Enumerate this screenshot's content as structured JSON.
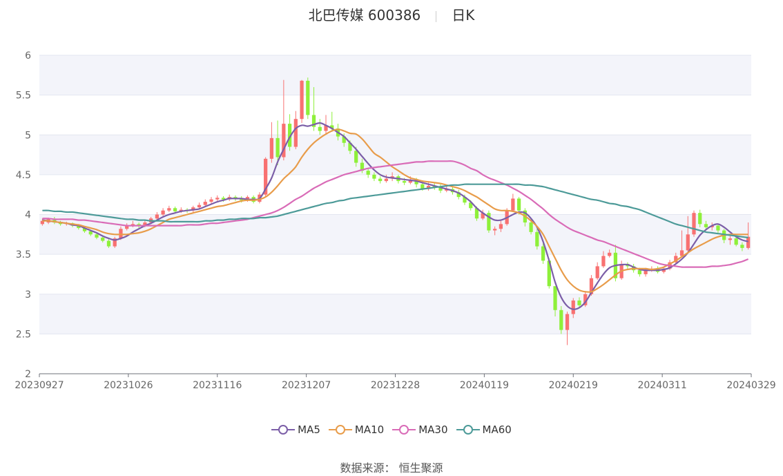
{
  "chart_data": {
    "type": "candlestick",
    "title": "北巴传媒 600386",
    "period": "日K",
    "ylim": [
      2,
      6
    ],
    "yticks": [
      "2",
      "2.5",
      "3",
      "3.5",
      "4",
      "4.5",
      "5",
      "5.5",
      "6"
    ],
    "xticks": [
      "20230927",
      "20231026",
      "20231116",
      "20231207",
      "20231228",
      "20240119",
      "20240219",
      "20240311",
      "20240329"
    ],
    "grid": true,
    "legend_position": "bottom",
    "colors": {
      "up": "#f87171",
      "down": "#8ef03a",
      "MA5": "#7b5ea7",
      "MA10": "#e89c4a",
      "MA30": "#d96bb7",
      "MA60": "#4c9a98"
    },
    "candles": [
      [
        3.88,
        3.92,
        3.95,
        3.86
      ],
      [
        3.9,
        3.94,
        3.96,
        3.88
      ],
      [
        3.93,
        3.9,
        3.97,
        3.88
      ],
      [
        3.9,
        3.88,
        3.92,
        3.86
      ],
      [
        3.88,
        3.89,
        3.91,
        3.86
      ],
      [
        3.89,
        3.86,
        3.9,
        3.84
      ],
      [
        3.86,
        3.83,
        3.88,
        3.81
      ],
      [
        3.83,
        3.79,
        3.85,
        3.77
      ],
      [
        3.79,
        3.75,
        3.81,
        3.73
      ],
      [
        3.75,
        3.71,
        3.77,
        3.69
      ],
      [
        3.71,
        3.67,
        3.73,
        3.65
      ],
      [
        3.67,
        3.6,
        3.69,
        3.58
      ],
      [
        3.6,
        3.7,
        3.72,
        3.58
      ],
      [
        3.7,
        3.82,
        3.85,
        3.68
      ],
      [
        3.82,
        3.86,
        3.89,
        3.8
      ],
      [
        3.86,
        3.88,
        3.92,
        3.84
      ],
      [
        3.88,
        3.86,
        3.9,
        3.83
      ],
      [
        3.86,
        3.9,
        3.93,
        3.84
      ],
      [
        3.9,
        3.95,
        3.97,
        3.88
      ],
      [
        3.95,
        4.0,
        4.03,
        3.93
      ],
      [
        4.0,
        4.05,
        4.08,
        3.98
      ],
      [
        4.05,
        4.08,
        4.11,
        4.03
      ],
      [
        4.08,
        4.04,
        4.1,
        4.01
      ],
      [
        4.04,
        4.06,
        4.09,
        4.02
      ],
      [
        4.06,
        4.05,
        4.08,
        4.02
      ],
      [
        4.05,
        4.09,
        4.11,
        4.03
      ],
      [
        4.09,
        4.12,
        4.15,
        4.07
      ],
      [
        4.12,
        4.16,
        4.19,
        4.1
      ],
      [
        4.16,
        4.19,
        4.22,
        4.14
      ],
      [
        4.19,
        4.21,
        4.24,
        4.17
      ],
      [
        4.21,
        4.19,
        4.23,
        4.16
      ],
      [
        4.19,
        4.22,
        4.25,
        4.17
      ],
      [
        4.22,
        4.2,
        4.24,
        4.17
      ],
      [
        4.2,
        4.18,
        4.23,
        4.15
      ],
      [
        4.18,
        4.22,
        4.24,
        4.16
      ],
      [
        4.22,
        4.16,
        4.24,
        4.14
      ],
      [
        4.16,
        4.25,
        4.28,
        4.14
      ],
      [
        4.25,
        4.7,
        4.72,
        4.23
      ],
      [
        4.7,
        4.96,
        5.16,
        4.65
      ],
      [
        4.96,
        4.72,
        5.18,
        4.62
      ],
      [
        4.72,
        5.14,
        5.69,
        4.68
      ],
      [
        5.14,
        4.85,
        5.26,
        4.8
      ],
      [
        4.85,
        5.2,
        5.3,
        4.82
      ],
      [
        5.2,
        5.68,
        5.69,
        5.15
      ],
      [
        5.68,
        5.25,
        5.72,
        5.2
      ],
      [
        5.25,
        5.1,
        5.6,
        5.05
      ],
      [
        5.1,
        5.05,
        5.2,
        5.0
      ],
      [
        5.05,
        5.12,
        5.25,
        5.02
      ],
      [
        5.12,
        5.08,
        5.29,
        5.04
      ],
      [
        5.08,
        4.98,
        5.14,
        4.93
      ],
      [
        4.98,
        4.9,
        5.02,
        4.85
      ],
      [
        4.9,
        4.8,
        4.93,
        4.76
      ],
      [
        4.8,
        4.65,
        4.85,
        4.6
      ],
      [
        4.65,
        4.55,
        4.7,
        4.52
      ],
      [
        4.55,
        4.5,
        4.58,
        4.46
      ],
      [
        4.5,
        4.45,
        4.53,
        4.42
      ],
      [
        4.45,
        4.42,
        4.48,
        4.39
      ],
      [
        4.42,
        4.45,
        4.5,
        4.4
      ],
      [
        4.45,
        4.48,
        4.53,
        4.42
      ],
      [
        4.48,
        4.42,
        4.5,
        4.39
      ],
      [
        4.42,
        4.4,
        4.46,
        4.37
      ],
      [
        4.4,
        4.44,
        4.48,
        4.38
      ],
      [
        4.44,
        4.38,
        4.46,
        4.34
      ],
      [
        4.38,
        4.32,
        4.42,
        4.3
      ],
      [
        4.32,
        4.36,
        4.4,
        4.3
      ],
      [
        4.36,
        4.34,
        4.39,
        4.31
      ],
      [
        4.34,
        4.3,
        4.38,
        4.27
      ],
      [
        4.3,
        4.32,
        4.36,
        4.28
      ],
      [
        4.32,
        4.28,
        4.35,
        4.25
      ],
      [
        4.28,
        4.22,
        4.31,
        4.19
      ],
      [
        4.22,
        4.15,
        4.25,
        4.12
      ],
      [
        4.15,
        4.08,
        4.18,
        4.05
      ],
      [
        4.08,
        3.95,
        4.1,
        3.92
      ],
      [
        3.95,
        4.02,
        4.06,
        3.93
      ],
      [
        4.02,
        3.8,
        4.05,
        3.77
      ],
      [
        3.8,
        3.82,
        3.85,
        3.74
      ],
      [
        3.82,
        3.88,
        3.92,
        3.78
      ],
      [
        3.88,
        4.05,
        4.08,
        3.86
      ],
      [
        4.05,
        4.2,
        4.26,
        4.03
      ],
      [
        4.2,
        4.05,
        4.22,
        4.0
      ],
      [
        4.05,
        3.9,
        4.08,
        3.85
      ],
      [
        3.9,
        3.78,
        3.94,
        3.75
      ],
      [
        3.78,
        3.6,
        3.82,
        3.56
      ],
      [
        3.6,
        3.42,
        3.64,
        3.38
      ],
      [
        3.42,
        3.1,
        3.45,
        3.07
      ],
      [
        3.1,
        2.8,
        3.04,
        2.72
      ],
      [
        2.8,
        2.55,
        2.85,
        2.5
      ],
      [
        2.55,
        2.75,
        2.78,
        2.36
      ],
      [
        2.75,
        2.92,
        2.95,
        2.7
      ],
      [
        2.92,
        2.86,
        2.96,
        2.82
      ],
      [
        2.86,
        3.0,
        3.04,
        2.84
      ],
      [
        3.0,
        3.2,
        3.24,
        2.98
      ],
      [
        3.2,
        3.35,
        3.4,
        3.18
      ],
      [
        3.35,
        3.48,
        3.54,
        3.33
      ],
      [
        3.48,
        3.52,
        3.56,
        3.46
      ],
      [
        3.52,
        3.2,
        3.62,
        3.16
      ],
      [
        3.2,
        3.38,
        3.42,
        3.18
      ],
      [
        3.38,
        3.35,
        3.4,
        3.32
      ],
      [
        3.35,
        3.3,
        3.38,
        3.27
      ],
      [
        3.3,
        3.25,
        3.33,
        3.22
      ],
      [
        3.25,
        3.3,
        3.33,
        3.22
      ],
      [
        3.3,
        3.32,
        3.35,
        3.28
      ],
      [
        3.32,
        3.28,
        3.35,
        3.26
      ],
      [
        3.28,
        3.32,
        3.34,
        3.26
      ],
      [
        3.32,
        3.4,
        3.43,
        3.3
      ],
      [
        3.4,
        3.48,
        3.52,
        3.38
      ],
      [
        3.48,
        3.55,
        3.8,
        3.46
      ],
      [
        3.55,
        3.75,
        3.98,
        3.53
      ],
      [
        3.75,
        4.02,
        4.05,
        3.72
      ],
      [
        4.02,
        3.88,
        4.06,
        3.84
      ],
      [
        3.88,
        3.84,
        3.92,
        3.8
      ],
      [
        3.84,
        3.86,
        3.9,
        3.8
      ],
      [
        3.86,
        3.8,
        3.88,
        3.76
      ],
      [
        3.8,
        3.68,
        3.82,
        3.64
      ],
      [
        3.68,
        3.7,
        3.73,
        3.62
      ],
      [
        3.7,
        3.62,
        3.72,
        3.6
      ],
      [
        3.62,
        3.58,
        3.65,
        3.54
      ],
      [
        3.58,
        3.72,
        3.9,
        3.56
      ]
    ],
    "series": [
      {
        "name": "MA5",
        "values": [
          3.93,
          3.92,
          3.91,
          3.9,
          3.89,
          3.87,
          3.86,
          3.83,
          3.8,
          3.77,
          3.73,
          3.7,
          3.68,
          3.7,
          3.73,
          3.78,
          3.82,
          3.86,
          3.89,
          3.93,
          3.97,
          4.0,
          4.02,
          4.04,
          4.05,
          4.06,
          4.07,
          4.1,
          4.13,
          4.16,
          4.18,
          4.2,
          4.2,
          4.2,
          4.19,
          4.19,
          4.2,
          4.32,
          4.46,
          4.66,
          4.82,
          4.97,
          5.08,
          5.12,
          5.11,
          5.13,
          5.15,
          5.12,
          5.08,
          5.03,
          4.98,
          4.9,
          4.82,
          4.73,
          4.64,
          4.56,
          4.5,
          4.47,
          4.46,
          4.45,
          4.44,
          4.43,
          4.42,
          4.4,
          4.38,
          4.36,
          4.34,
          4.32,
          4.3,
          4.27,
          4.22,
          4.16,
          4.08,
          4.02,
          3.97,
          3.93,
          3.93,
          3.96,
          4.0,
          4.03,
          4.02,
          3.95,
          3.84,
          3.66,
          3.42,
          3.15,
          2.96,
          2.85,
          2.81,
          2.83,
          2.9,
          3.02,
          3.14,
          3.25,
          3.33,
          3.36,
          3.37,
          3.37,
          3.34,
          3.31,
          3.3,
          3.3,
          3.3,
          3.31,
          3.33,
          3.38,
          3.44,
          3.52,
          3.63,
          3.74,
          3.81,
          3.86,
          3.88,
          3.84,
          3.78,
          3.72,
          3.68,
          3.66
        ]
      },
      {
        "name": "MA10",
        "values": [
          3.92,
          3.92,
          3.91,
          3.9,
          3.89,
          3.88,
          3.87,
          3.85,
          3.83,
          3.81,
          3.78,
          3.76,
          3.75,
          3.75,
          3.75,
          3.76,
          3.77,
          3.79,
          3.82,
          3.86,
          3.9,
          3.94,
          3.96,
          3.98,
          4.0,
          4.02,
          4.04,
          4.06,
          4.08,
          4.1,
          4.11,
          4.13,
          4.15,
          4.17,
          4.18,
          4.18,
          4.19,
          4.22,
          4.28,
          4.36,
          4.45,
          4.52,
          4.6,
          4.72,
          4.82,
          4.9,
          4.96,
          5.01,
          5.05,
          5.07,
          5.05,
          5.02,
          5.01,
          4.95,
          4.86,
          4.77,
          4.72,
          4.66,
          4.6,
          4.55,
          4.5,
          4.46,
          4.44,
          4.42,
          4.41,
          4.4,
          4.39,
          4.37,
          4.35,
          4.33,
          4.3,
          4.26,
          4.22,
          4.17,
          4.12,
          4.07,
          4.05,
          4.05,
          4.04,
          4.02,
          3.98,
          3.92,
          3.85,
          3.75,
          3.6,
          3.45,
          3.3,
          3.18,
          3.1,
          3.05,
          3.03,
          3.03,
          3.07,
          3.12,
          3.18,
          3.24,
          3.29,
          3.31,
          3.32,
          3.32,
          3.32,
          3.31,
          3.32,
          3.34,
          3.38,
          3.42,
          3.47,
          3.52,
          3.57,
          3.61,
          3.65,
          3.69,
          3.72,
          3.74,
          3.75,
          3.75,
          3.75,
          3.75
        ]
      },
      {
        "name": "MA30",
        "values": [
          3.95,
          3.95,
          3.94,
          3.94,
          3.94,
          3.94,
          3.93,
          3.93,
          3.92,
          3.91,
          3.9,
          3.89,
          3.88,
          3.87,
          3.86,
          3.86,
          3.86,
          3.86,
          3.86,
          3.86,
          3.86,
          3.86,
          3.86,
          3.86,
          3.87,
          3.87,
          3.87,
          3.88,
          3.89,
          3.89,
          3.9,
          3.91,
          3.92,
          3.93,
          3.94,
          3.96,
          3.98,
          4.0,
          4.02,
          4.05,
          4.09,
          4.14,
          4.19,
          4.23,
          4.28,
          4.33,
          4.37,
          4.41,
          4.44,
          4.47,
          4.5,
          4.52,
          4.54,
          4.56,
          4.58,
          4.59,
          4.6,
          4.61,
          4.62,
          4.63,
          4.64,
          4.65,
          4.66,
          4.66,
          4.67,
          4.67,
          4.67,
          4.67,
          4.67,
          4.65,
          4.62,
          4.58,
          4.55,
          4.5,
          4.46,
          4.43,
          4.4,
          4.37,
          4.33,
          4.29,
          4.24,
          4.19,
          4.13,
          4.07,
          4.0,
          3.94,
          3.89,
          3.84,
          3.8,
          3.77,
          3.74,
          3.71,
          3.68,
          3.66,
          3.63,
          3.6,
          3.57,
          3.54,
          3.51,
          3.48,
          3.45,
          3.42,
          3.39,
          3.37,
          3.36,
          3.35,
          3.34,
          3.34,
          3.34,
          3.34,
          3.34,
          3.35,
          3.35,
          3.36,
          3.37,
          3.39,
          3.41,
          3.44
        ]
      },
      {
        "name": "MA60",
        "values": [
          4.05,
          4.05,
          4.04,
          4.04,
          4.03,
          4.03,
          4.02,
          4.01,
          4.0,
          3.99,
          3.98,
          3.97,
          3.96,
          3.95,
          3.94,
          3.94,
          3.93,
          3.93,
          3.92,
          3.92,
          3.92,
          3.91,
          3.91,
          3.91,
          3.91,
          3.91,
          3.91,
          3.92,
          3.92,
          3.93,
          3.93,
          3.94,
          3.94,
          3.95,
          3.95,
          3.95,
          3.96,
          3.96,
          3.97,
          3.98,
          4.0,
          4.02,
          4.04,
          4.06,
          4.08,
          4.1,
          4.12,
          4.14,
          4.15,
          4.17,
          4.18,
          4.2,
          4.21,
          4.22,
          4.23,
          4.24,
          4.25,
          4.26,
          4.27,
          4.28,
          4.29,
          4.3,
          4.31,
          4.32,
          4.33,
          4.34,
          4.35,
          4.36,
          4.37,
          4.37,
          4.38,
          4.38,
          4.38,
          4.38,
          4.38,
          4.38,
          4.38,
          4.38,
          4.38,
          4.38,
          4.37,
          4.37,
          4.36,
          4.35,
          4.33,
          4.31,
          4.29,
          4.27,
          4.25,
          4.23,
          4.21,
          4.19,
          4.18,
          4.16,
          4.14,
          4.13,
          4.11,
          4.1,
          4.08,
          4.06,
          4.03,
          4.0,
          3.97,
          3.94,
          3.91,
          3.88,
          3.86,
          3.84,
          3.82,
          3.8,
          3.78,
          3.77,
          3.76,
          3.75,
          3.74,
          3.73,
          3.72,
          3.71
        ]
      }
    ]
  },
  "source_label": "数据来源：",
  "source_value": "恒生聚源"
}
